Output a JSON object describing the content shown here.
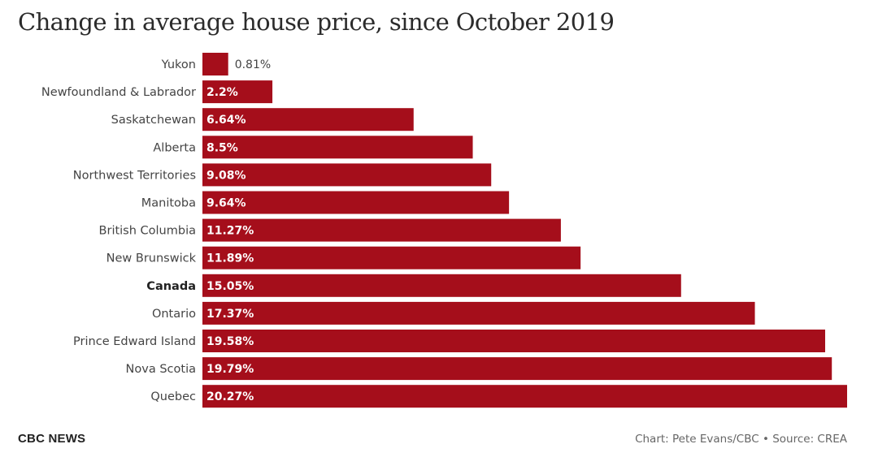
{
  "chart_data": {
    "type": "bar",
    "orientation": "horizontal",
    "title": "Change in average house price, since October 2019",
    "categories": [
      "Yukon",
      "Newfoundland & Labrador",
      "Saskatchewan",
      "Alberta",
      "Northwest Territories",
      "Manitoba",
      "British Columbia",
      "New Brunswick",
      "Canada",
      "Ontario",
      "Prince Edward Island",
      "Nova Scotia",
      "Quebec"
    ],
    "values": [
      0.81,
      2.2,
      6.64,
      8.5,
      9.08,
      9.64,
      11.27,
      11.89,
      15.05,
      17.37,
      19.58,
      19.79,
      20.27
    ],
    "value_labels": [
      "0.81%",
      "2.2%",
      "6.64%",
      "8.5%",
      "9.08%",
      "9.64%",
      "11.27%",
      "11.89%",
      "15.05%",
      "17.37%",
      "19.58%",
      "19.79%",
      "20.27%"
    ],
    "highlight_category": "Canada",
    "xlim": [
      0,
      20.27
    ],
    "bar_color": "#a50e1b",
    "grid": false,
    "legend": false
  },
  "footer": {
    "brand": "CBC NEWS",
    "credit": "Chart: Pete Evans/CBC • Source: CREA"
  }
}
